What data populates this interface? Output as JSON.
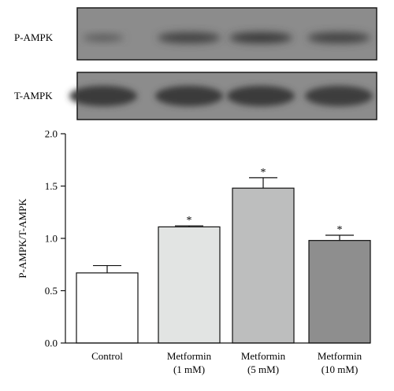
{
  "blots": [
    {
      "label": "P-AMPK",
      "band_intensity": [
        0.45,
        0.8,
        0.95,
        0.8
      ]
    },
    {
      "label": "T-AMPK",
      "band_intensity": [
        0.95,
        0.95,
        0.95,
        0.9
      ]
    }
  ],
  "chart_data": {
    "type": "bar",
    "categories": [
      [
        "Control"
      ],
      [
        "Metformin",
        "(1 mM)"
      ],
      [
        "Metformin",
        "(5 mM)"
      ],
      [
        "Metformin",
        "(10 mM)"
      ]
    ],
    "values": [
      0.67,
      1.11,
      1.48,
      0.98
    ],
    "error_upper": [
      0.74,
      1.12,
      1.58,
      1.03
    ],
    "significance": [
      "",
      "*",
      "*",
      "*"
    ],
    "bar_colors": [
      "#ffffff",
      "#e2e4e3",
      "#bdbebe",
      "#8e8e8e"
    ],
    "xlabel": "",
    "ylabel": "P-AMPK/T-AMPK",
    "ylim": [
      0.0,
      2.0
    ],
    "yticks": [
      "0.0",
      "0.5",
      "1.0",
      "1.5",
      "2.0"
    ],
    "grid": false,
    "legend": "none"
  }
}
